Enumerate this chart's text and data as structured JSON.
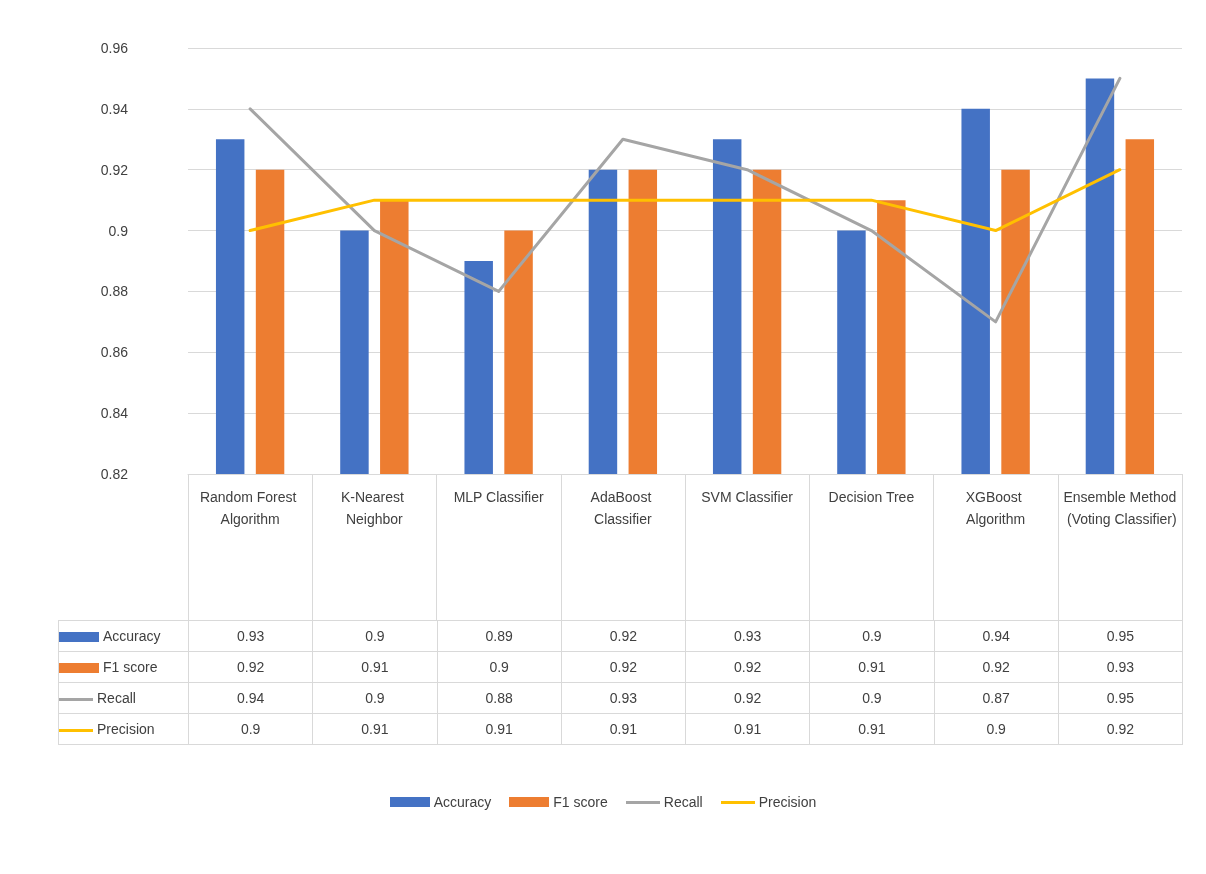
{
  "chart_data": {
    "type": "bar",
    "categories": [
      "Random Forest Algorithm",
      "K-Nearest Neighbor",
      "MLP Classifier",
      "AdaBoost Classifier",
      "SVM Classifier",
      "Decision Tree",
      "XGBoost Algorithm",
      "Ensemble Method (Voting Classifier)"
    ],
    "series": [
      {
        "name": "Accuracy",
        "color": "#4472c4",
        "values": [
          0.93,
          0.9,
          0.89,
          0.92,
          0.93,
          0.9,
          0.94,
          0.95
        ]
      },
      {
        "name": "F1 score",
        "color": "#ed7d31",
        "values": [
          0.92,
          0.91,
          0.9,
          0.92,
          0.92,
          0.91,
          0.92,
          0.93
        ]
      },
      {
        "name": "Recall",
        "type": "line",
        "color": "#a5a5a5",
        "values": [
          0.94,
          0.9,
          0.88,
          0.93,
          0.92,
          0.9,
          0.87,
          0.95
        ]
      },
      {
        "name": "Precision",
        "type": "line",
        "color": "#ffc000",
        "values": [
          0.9,
          0.91,
          0.91,
          0.91,
          0.91,
          0.91,
          0.9,
          0.92
        ]
      }
    ],
    "ylim": [
      0.82,
      0.96
    ],
    "yticks": [
      0.82,
      0.84,
      0.86,
      0.88,
      0.9,
      0.92,
      0.94,
      0.96
    ],
    "grid": "y",
    "legend": "bottom",
    "marker": "none",
    "line_style": "solid",
    "data_labels": true
  }
}
